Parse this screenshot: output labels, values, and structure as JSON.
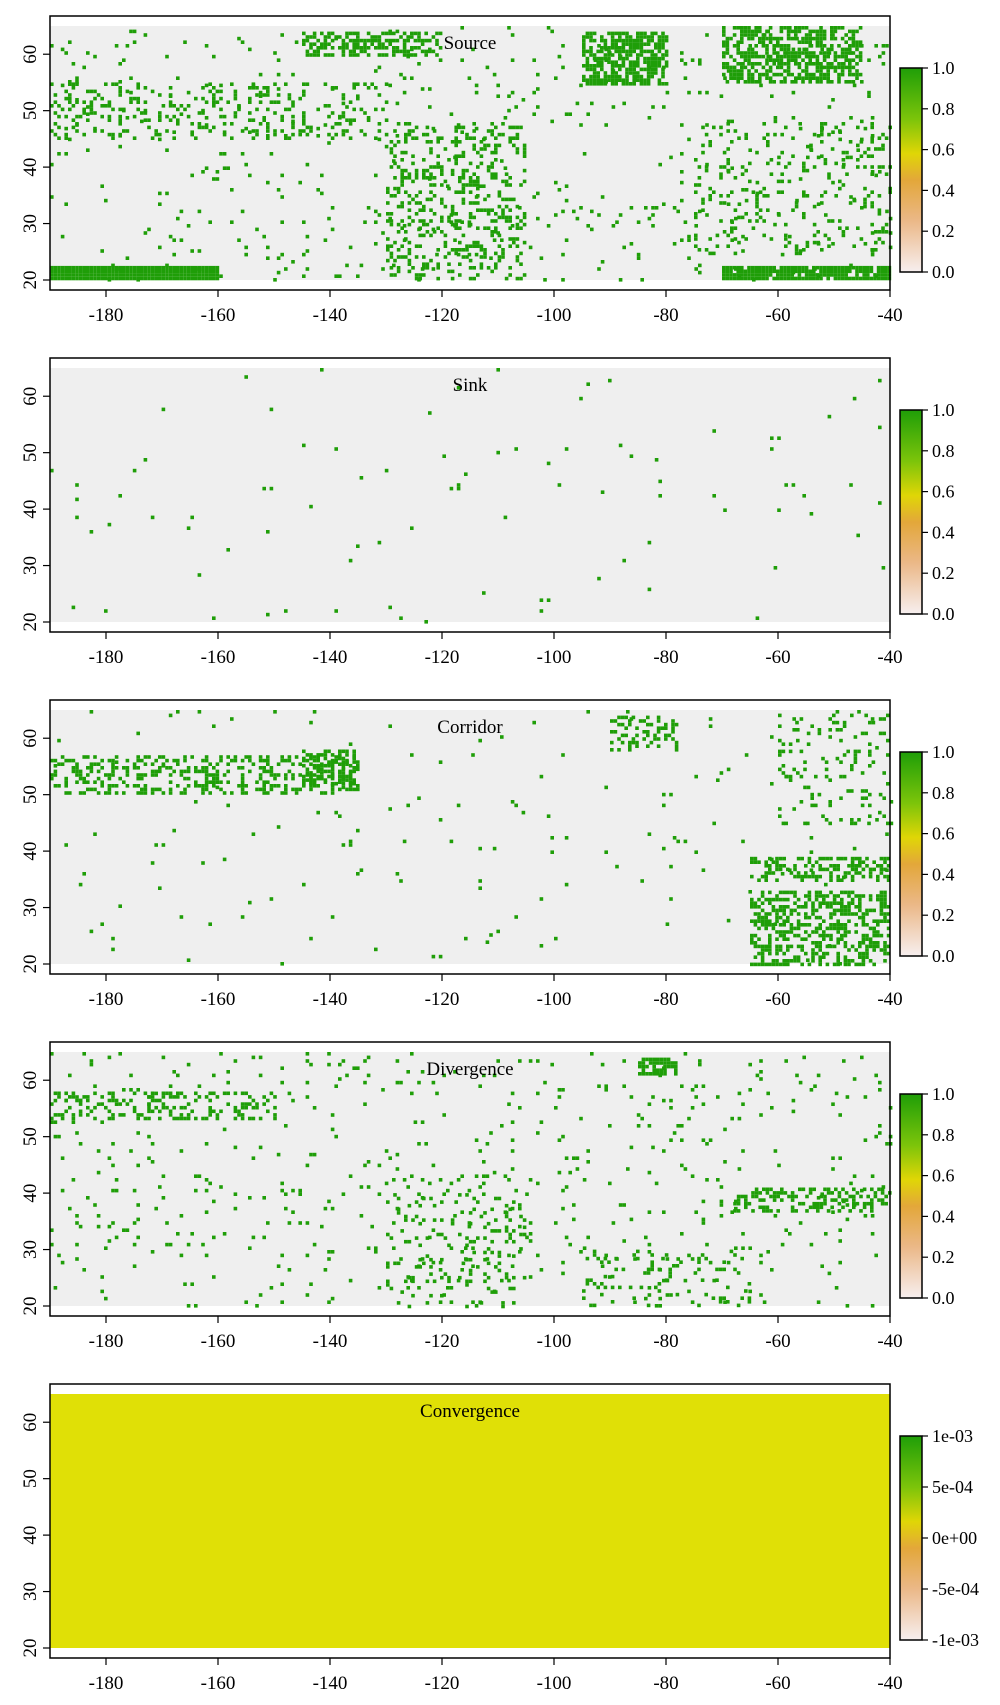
{
  "x_ticks": [
    "-180",
    "-160",
    "-140",
    "-120",
    "-100",
    "-80",
    "-60",
    "-40"
  ],
  "y_ticks": [
    "20",
    "30",
    "40",
    "50",
    "60"
  ],
  "colors": {
    "background_raster": "#efefef",
    "high": "#1f9e08",
    "mid": "#e0e006",
    "low_mid": "#e8a64a",
    "low": "#f7efef",
    "frame": "#000000"
  },
  "panels": [
    {
      "key": "source",
      "title": "Source",
      "fill": "sparse",
      "legend_ticks": [
        "0.0",
        "0.2",
        "0.4",
        "0.6",
        "0.8",
        "1.0"
      ]
    },
    {
      "key": "sink",
      "title": "Sink",
      "fill": "sparse",
      "legend_ticks": [
        "0.0",
        "0.2",
        "0.4",
        "0.6",
        "0.8",
        "1.0"
      ]
    },
    {
      "key": "corridor",
      "title": "Corridor",
      "fill": "sparse",
      "legend_ticks": [
        "0.0",
        "0.2",
        "0.4",
        "0.6",
        "0.8",
        "1.0"
      ]
    },
    {
      "key": "divergence",
      "title": "Divergence",
      "fill": "sparse",
      "legend_ticks": [
        "0.0",
        "0.2",
        "0.4",
        "0.6",
        "0.8",
        "1.0"
      ]
    },
    {
      "key": "convergence",
      "title": "Convergence",
      "fill": "uniform",
      "legend_ticks": [
        "-1e-03",
        "-5e-04",
        "0e+00",
        "5e-04",
        "1e-03"
      ]
    }
  ]
}
